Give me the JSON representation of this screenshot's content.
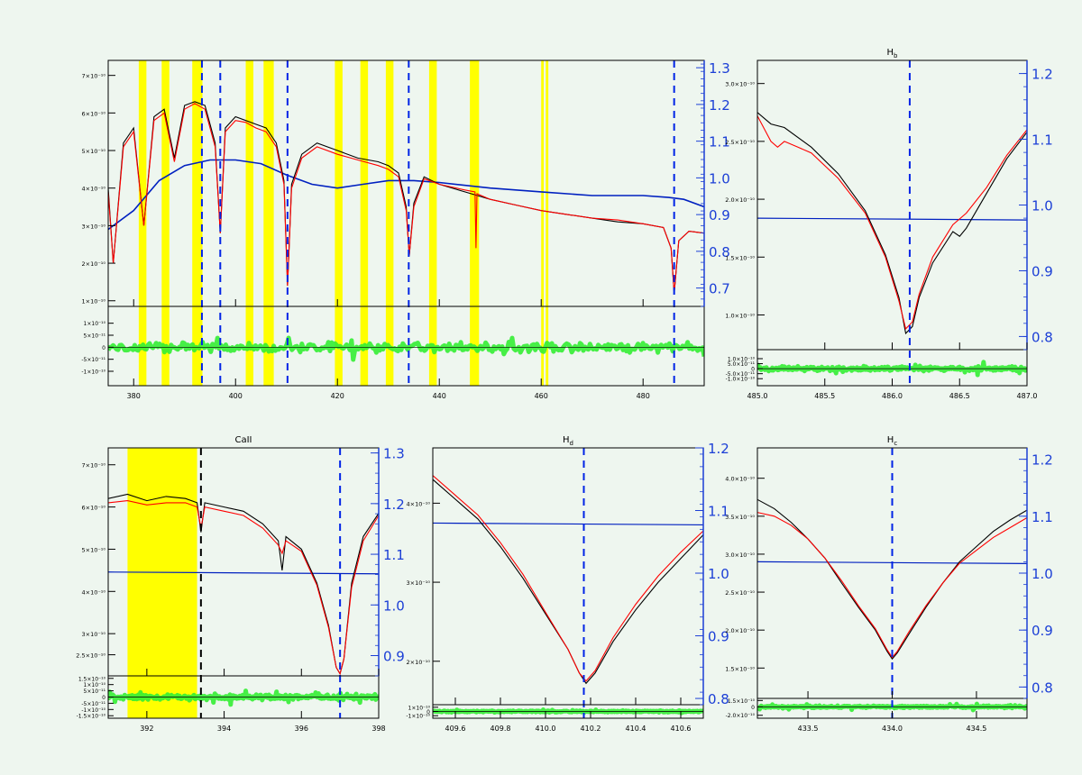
{
  "chart_data": [
    {
      "id": "overview",
      "type": "line",
      "title": "",
      "xlabel": "",
      "ylabel": "",
      "xlim": [
        375,
        492
      ],
      "ylim": [
        8.5e-11,
        7.4e-10
      ],
      "y2lim": [
        0.65,
        1.32
      ],
      "resid_ylim": [
        -1.6e-10,
        1.7e-10
      ],
      "xticks": [
        380,
        400,
        420,
        440,
        460,
        480
      ],
      "xtick_labels": [
        "380",
        "400",
        "420",
        "440",
        "460",
        "480"
      ],
      "yticks": [
        1e-10,
        2e-10,
        3e-10,
        4e-10,
        5e-10,
        6e-10,
        7e-10
      ],
      "ytick_labels": [
        "1×10⁻¹⁰",
        "2×10⁻¹⁰",
        "3×10⁻¹⁰",
        "4×10⁻¹⁰",
        "5×10⁻¹⁰",
        "6×10⁻¹⁰",
        "7×10⁻¹⁰"
      ],
      "y2ticks": [
        0.7,
        0.8,
        0.9,
        1.0,
        1.1,
        1.2,
        1.3
      ],
      "y2tick_labels": [
        "0.7",
        "0.8",
        "0.9",
        "1.0",
        "1.1",
        "1.2",
        "1.3"
      ],
      "resid_yticks": [
        -1e-10,
        -5e-11,
        0,
        5e-11,
        1e-10
      ],
      "resid_ytick_labels": [
        "-1×10⁻¹⁰",
        "-5×10⁻¹¹",
        "0",
        "5×10⁻¹¹",
        "1×10⁻¹⁰"
      ],
      "continuum": {
        "x": [
          375,
          380,
          385,
          390,
          395,
          400,
          405,
          410,
          415,
          420,
          425,
          430,
          435,
          440,
          450,
          460,
          470,
          480,
          485,
          488,
          492
        ],
        "y": [
          2.9e-10,
          3.4e-10,
          4.2e-10,
          4.6e-10,
          4.75e-10,
          4.75e-10,
          4.65e-10,
          4.35e-10,
          4.1e-10,
          4e-10,
          4.1e-10,
          4.2e-10,
          4.2e-10,
          4.15e-10,
          4e-10,
          3.9e-10,
          3.8e-10,
          3.8e-10,
          3.75e-10,
          3.7e-10,
          3.5e-10
        ]
      },
      "spectrum_black": {
        "x": [
          375,
          376,
          378,
          380,
          382,
          384,
          386,
          388,
          390,
          392,
          394,
          396,
          397,
          398,
          400,
          402,
          404,
          406,
          408,
          409.5,
          410.2,
          411,
          413,
          416,
          420,
          424,
          428,
          430,
          432,
          433.5,
          434.1,
          435,
          437,
          440,
          445,
          450,
          455,
          460,
          465,
          470,
          475,
          480,
          484,
          485.5,
          486.1,
          487,
          489,
          492
        ],
        "y": [
          4e-10,
          2e-10,
          5.2e-10,
          5.6e-10,
          3e-10,
          5.9e-10,
          6.1e-10,
          4.8e-10,
          6.2e-10,
          6.3e-10,
          6.2e-10,
          5.2e-10,
          2.8e-10,
          5.6e-10,
          5.9e-10,
          5.8e-10,
          5.7e-10,
          5.6e-10,
          5.2e-10,
          4.2e-10,
          1.4e-10,
          4.1e-10,
          4.9e-10,
          5.2e-10,
          5e-10,
          4.8e-10,
          4.7e-10,
          4.6e-10,
          4.4e-10,
          3.5e-10,
          2.2e-10,
          3.6e-10,
          4.3e-10,
          4.1e-10,
          3.9e-10,
          3.7e-10,
          3.55e-10,
          3.4e-10,
          3.3e-10,
          3.2e-10,
          3.1e-10,
          3.05e-10,
          2.95e-10,
          2.4e-10,
          1.2e-10,
          2.6e-10,
          2.85e-10,
          2.8e-10
        ]
      },
      "spectrum_red": {
        "x": [
          375,
          376,
          378,
          380,
          382,
          384,
          386,
          388,
          390,
          392,
          394,
          396,
          397,
          398,
          400,
          402,
          404,
          406,
          408,
          409.5,
          410.2,
          411,
          413,
          416,
          420,
          424,
          428,
          430,
          432,
          433.5,
          434.1,
          435,
          437,
          440,
          445,
          447,
          447.2,
          447.4,
          450,
          455,
          460,
          465,
          470,
          475,
          480,
          484,
          485.5,
          486.1,
          487,
          489,
          492
        ],
        "y": [
          3.9e-10,
          2e-10,
          5.1e-10,
          5.5e-10,
          3e-10,
          5.8e-10,
          6e-10,
          4.7e-10,
          6.1e-10,
          6.25e-10,
          6.1e-10,
          5.1e-10,
          2.8e-10,
          5.5e-10,
          5.8e-10,
          5.75e-10,
          5.6e-10,
          5.5e-10,
          5.1e-10,
          4.1e-10,
          1.4e-10,
          4e-10,
          4.8e-10,
          5.1e-10,
          4.9e-10,
          4.75e-10,
          4.6e-10,
          4.5e-10,
          4.3e-10,
          3.4e-10,
          2.2e-10,
          3.5e-10,
          4.25e-10,
          4.1e-10,
          3.95e-10,
          3.9e-10,
          2.4e-10,
          3.85e-10,
          3.7e-10,
          3.55e-10,
          3.4e-10,
          3.3e-10,
          3.2e-10,
          3.15e-10,
          3.05e-10,
          2.95e-10,
          2.4e-10,
          1.2e-10,
          2.6e-10,
          2.85e-10,
          2.8e-10
        ]
      },
      "yellow_bands": [
        [
          381,
          382.5
        ],
        [
          385.5,
          387
        ],
        [
          391.5,
          393.5
        ],
        [
          402,
          403.5
        ],
        [
          405.5,
          407.5
        ],
        [
          419.5,
          421
        ],
        [
          424.5,
          426
        ],
        [
          429.5,
          431
        ],
        [
          438,
          439.5
        ],
        [
          446,
          447.8
        ],
        [
          460,
          460.5
        ],
        [
          460.9,
          461.4
        ]
      ],
      "vlines": [
        393.4,
        397.0,
        410.2,
        434.0,
        486.1
      ],
      "resid_baseline": 0
    },
    {
      "id": "hb",
      "type": "line",
      "title": "Hᵦ",
      "title_base": "H",
      "title_sub": "b",
      "xlim": [
        485.0,
        487.0
      ],
      "ylim": [
        7e-11,
        3.2e-10
      ],
      "y2lim": [
        0.78,
        1.22
      ],
      "resid_ylim": [
        -1.7e-10,
        1.9e-10
      ],
      "xticks": [
        485.0,
        485.5,
        486.0,
        486.5,
        487.0
      ],
      "xtick_labels": [
        "485.0",
        "485.5",
        "486.0",
        "486.5",
        "487.0"
      ],
      "yticks": [
        1e-10,
        1.5e-10,
        2e-10,
        2.5e-10,
        3e-10
      ],
      "ytick_labels": [
        "1.0×10⁻¹⁰",
        "1.5×10⁻¹⁰",
        "2.0×10⁻¹⁰",
        "2.5×10⁻¹⁰",
        "3.0×10⁻¹⁰"
      ],
      "y2ticks": [
        0.8,
        0.9,
        1.0,
        1.1,
        1.2
      ],
      "y2tick_labels": [
        "0.8",
        "0.9",
        "1.0",
        "1.1",
        "1.2"
      ],
      "resid_yticks": [
        -1e-10,
        -5e-11,
        0,
        5e-11,
        1e-10
      ],
      "resid_ytick_labels": [
        "-1.0×10⁻¹⁰",
        "-5.0×10⁻¹¹",
        "0",
        "5.0×10⁻¹¹",
        "1.0×10⁻¹⁰"
      ],
      "continuum_level": 0.98,
      "spectrum_black": {
        "x": [
          485.0,
          485.1,
          485.2,
          485.4,
          485.6,
          485.8,
          485.95,
          486.05,
          486.1,
          486.15,
          486.2,
          486.3,
          486.45,
          486.5,
          486.55,
          486.7,
          486.85,
          487.0
        ],
        "y": [
          2.75e-10,
          2.65e-10,
          2.62e-10,
          2.45e-10,
          2.22e-10,
          1.9e-10,
          1.52e-10,
          1.15e-10,
          8.4e-11,
          9e-11,
          1.15e-10,
          1.45e-10,
          1.72e-10,
          1.68e-10,
          1.75e-10,
          2.05e-10,
          2.35e-10,
          2.58e-10
        ]
      },
      "spectrum_red": {
        "x": [
          485.0,
          485.1,
          485.15,
          485.2,
          485.3,
          485.4,
          485.6,
          485.8,
          485.95,
          486.05,
          486.1,
          486.15,
          486.2,
          486.3,
          486.45,
          486.55,
          486.7,
          486.85,
          487.0
        ],
        "y": [
          2.72e-10,
          2.5e-10,
          2.45e-10,
          2.5e-10,
          2.45e-10,
          2.4e-10,
          2.18e-10,
          1.88e-10,
          1.5e-10,
          1.12e-10,
          8.8e-11,
          9.4e-11,
          1.18e-10,
          1.5e-10,
          1.78e-10,
          1.88e-10,
          2.1e-10,
          2.38e-10,
          2.6e-10
        ]
      },
      "vlines": [
        486.13
      ],
      "resid_baseline": 0
    },
    {
      "id": "caii",
      "type": "line",
      "title": "CaII",
      "xlim": [
        391.0,
        398.0
      ],
      "ylim": [
        2e-10,
        7.4e-10
      ],
      "y2lim": [
        0.86,
        1.31
      ],
      "resid_ylim": [
        -1.7e-10,
        1.7e-10
      ],
      "xticks": [
        392,
        394,
        396,
        398
      ],
      "xtick_labels": [
        "392",
        "394",
        "396",
        "398"
      ],
      "yticks": [
        2.5e-10,
        3e-10,
        4e-10,
        5e-10,
        6e-10,
        7e-10
      ],
      "ytick_labels": [
        "2.5×10⁻¹⁰",
        "3×10⁻¹⁰",
        "4×10⁻¹⁰",
        "5×10⁻¹⁰",
        "6×10⁻¹⁰",
        "7×10⁻¹⁰"
      ],
      "y2ticks": [
        0.9,
        1.0,
        1.1,
        1.2,
        1.3
      ],
      "y2tick_labels": [
        "0.9",
        "1.0",
        "1.1",
        "1.2",
        "1.3"
      ],
      "resid_yticks": [
        -1.5e-10,
        -1e-10,
        -5e-11,
        0,
        5e-11,
        1e-10,
        1.5e-10
      ],
      "resid_ytick_labels": [
        "-1.5×10⁻¹⁰",
        "-1×10⁻¹⁰",
        "-5×10⁻¹¹",
        "0",
        "5×10⁻¹¹",
        "1×10⁻¹⁰",
        "1.5×10⁻¹⁰"
      ],
      "continuum_level": 1.065,
      "spectrum_black": {
        "x": [
          391.0,
          391.5,
          392.0,
          392.5,
          393.0,
          393.3,
          393.4,
          393.5,
          394.0,
          394.5,
          395.0,
          395.4,
          395.5,
          395.6,
          396.0,
          396.4,
          396.7,
          396.9,
          397.0,
          397.1,
          397.3,
          397.6,
          398.0
        ],
        "y": [
          6.2e-10,
          6.3e-10,
          6.15e-10,
          6.25e-10,
          6.2e-10,
          6.1e-10,
          5.4e-10,
          6.1e-10,
          6e-10,
          5.9e-10,
          5.6e-10,
          5.2e-10,
          4.5e-10,
          5.3e-10,
          5e-10,
          4.2e-10,
          3.2e-10,
          2.2e-10,
          2.05e-10,
          2.4e-10,
          4.2e-10,
          5.3e-10,
          5.85e-10
        ]
      },
      "spectrum_red": {
        "x": [
          391.0,
          391.5,
          392.0,
          392.5,
          393.0,
          393.3,
          393.4,
          393.5,
          394.0,
          394.5,
          395.0,
          395.4,
          395.5,
          395.6,
          396.0,
          396.4,
          396.7,
          396.9,
          397.0,
          397.1,
          397.3,
          397.6,
          398.0
        ],
        "y": [
          6.1e-10,
          6.15e-10,
          6.05e-10,
          6.1e-10,
          6.1e-10,
          6e-10,
          5.5e-10,
          6e-10,
          5.9e-10,
          5.8e-10,
          5.5e-10,
          5.1e-10,
          4.9e-10,
          5.2e-10,
          4.95e-10,
          4.15e-10,
          3.15e-10,
          2.2e-10,
          2.05e-10,
          2.4e-10,
          4.1e-10,
          5.2e-10,
          5.8e-10
        ]
      },
      "yellow_bands": [
        [
          391.5,
          393.3
        ]
      ],
      "vlines_black": [
        393.4
      ],
      "vlines": [
        397.0
      ],
      "resid_baseline": 0
    },
    {
      "id": "hd",
      "type": "line",
      "title": "Hᴅ",
      "title_base": "H",
      "title_sub": "d",
      "xlim": [
        409.5,
        410.7
      ],
      "ylim": [
        1.45e-10,
        4.7e-10
      ],
      "y2lim": [
        0.79,
        1.2
      ],
      "resid_ylim": [
        -1.6e-10,
        1.6e-10
      ],
      "xticks": [
        409.6,
        409.8,
        410.0,
        410.2,
        410.4,
        410.6
      ],
      "xtick_labels": [
        "409.6",
        "409.8",
        "410.0",
        "410.2",
        "410.4",
        "410.6"
      ],
      "yticks": [
        2e-10,
        3e-10,
        4e-10
      ],
      "ytick_labels": [
        "2×10⁻¹⁰",
        "3×10⁻¹⁰",
        "4×10⁻¹⁰"
      ],
      "y2ticks": [
        0.8,
        0.9,
        1.0,
        1.1,
        1.2
      ],
      "y2tick_labels": [
        "0.8",
        "0.9",
        "1.0",
        "1.1",
        "1.2"
      ],
      "resid_yticks": [
        -1e-10,
        0,
        1e-10
      ],
      "resid_ytick_labels": [
        "-1×10⁻¹⁰",
        "0",
        "1×10⁻¹⁰"
      ],
      "continuum_level": 1.08,
      "spectrum_black": {
        "x": [
          409.5,
          409.6,
          409.7,
          409.8,
          409.9,
          410.0,
          410.1,
          410.15,
          410.18,
          410.22,
          410.3,
          410.4,
          410.5,
          410.6,
          410.7
        ],
        "y": [
          4.3e-10,
          4.05e-10,
          3.8e-10,
          3.45e-10,
          3.05e-10,
          2.6e-10,
          2.15e-10,
          1.85e-10,
          1.72e-10,
          1.85e-10,
          2.25e-10,
          2.65e-10,
          3e-10,
          3.3e-10,
          3.6e-10
        ]
      },
      "spectrum_red": {
        "x": [
          409.5,
          409.6,
          409.7,
          409.8,
          409.9,
          410.0,
          410.1,
          410.15,
          410.18,
          410.22,
          410.3,
          410.4,
          410.5,
          410.6,
          410.7
        ],
        "y": [
          4.35e-10,
          4.1e-10,
          3.85e-10,
          3.5e-10,
          3.1e-10,
          2.62e-10,
          2.15e-10,
          1.85e-10,
          1.75e-10,
          1.88e-10,
          2.3e-10,
          2.72e-10,
          3.08e-10,
          3.38e-10,
          3.65e-10
        ]
      },
      "vlines": [
        410.17
      ],
      "resid_baseline": 0
    },
    {
      "id": "hc",
      "type": "line",
      "title": "Hᴄ",
      "title_base": "H",
      "title_sub": "c",
      "xlim": [
        433.2,
        434.8
      ],
      "ylim": [
        1.1e-10,
        4.4e-10
      ],
      "y2lim": [
        0.78,
        1.22
      ],
      "resid_ylim": [
        -2.7e-10,
        2e-10
      ],
      "xticks": [
        433.5,
        434.0,
        434.5
      ],
      "xtick_labels": [
        "433.5",
        "434.0",
        "434.5"
      ],
      "yticks": [
        1.5e-10,
        2e-10,
        2.5e-10,
        3e-10,
        3.5e-10,
        4e-10
      ],
      "ytick_labels": [
        "1.5×10⁻¹⁰",
        "2.0×10⁻¹⁰",
        "2.5×10⁻¹⁰",
        "3.0×10⁻¹⁰",
        "3.5×10⁻¹⁰",
        "4.0×10⁻¹⁰"
      ],
      "y2ticks": [
        0.8,
        0.9,
        1.0,
        1.1,
        1.2
      ],
      "y2tick_labels": [
        "0.8",
        "0.9",
        "1.0",
        "1.1",
        "1.2"
      ],
      "resid_yticks": [
        -2e-10,
        0,
        1.5e-10
      ],
      "resid_ytick_labels": [
        "-2.0×10⁻¹⁰",
        "0",
        "1.5×10⁻¹⁰"
      ],
      "continuum_level": 1.02,
      "spectrum_black": {
        "x": [
          433.2,
          433.3,
          433.4,
          433.5,
          433.6,
          433.7,
          433.8,
          433.9,
          433.97,
          434.0,
          434.03,
          434.1,
          434.2,
          434.3,
          434.4,
          434.5,
          434.6,
          434.7,
          434.8
        ],
        "y": [
          3.72e-10,
          3.6e-10,
          3.42e-10,
          3.2e-10,
          2.95e-10,
          2.62e-10,
          2.3e-10,
          2e-10,
          1.72e-10,
          1.62e-10,
          1.7e-10,
          1.95e-10,
          2.3e-10,
          2.62e-10,
          2.9e-10,
          3.1e-10,
          3.3e-10,
          3.45e-10,
          3.58e-10
        ]
      },
      "spectrum_red": {
        "x": [
          433.2,
          433.3,
          433.4,
          433.5,
          433.6,
          433.7,
          433.8,
          433.9,
          433.97,
          434.0,
          434.03,
          434.1,
          434.2,
          434.3,
          434.4,
          434.5,
          434.6,
          434.7,
          434.8
        ],
        "y": [
          3.55e-10,
          3.5e-10,
          3.38e-10,
          3.2e-10,
          2.95e-10,
          2.65e-10,
          2.32e-10,
          2.02e-10,
          1.74e-10,
          1.64e-10,
          1.72e-10,
          1.98e-10,
          2.32e-10,
          2.62e-10,
          2.88e-10,
          3.05e-10,
          3.22e-10,
          3.35e-10,
          3.48e-10
        ]
      },
      "vlines": [
        434.0
      ],
      "resid_baseline": 0
    }
  ],
  "colors": {
    "background": "#eef6ef",
    "axis": "#000000",
    "observed": "#000000",
    "model": "#ff0000",
    "continuum": "#0020c0",
    "secondary_axis": "#1c3fd6",
    "marker_line": "#0024e6",
    "mask_band": "#ffff00",
    "residual": "#33ee33"
  }
}
